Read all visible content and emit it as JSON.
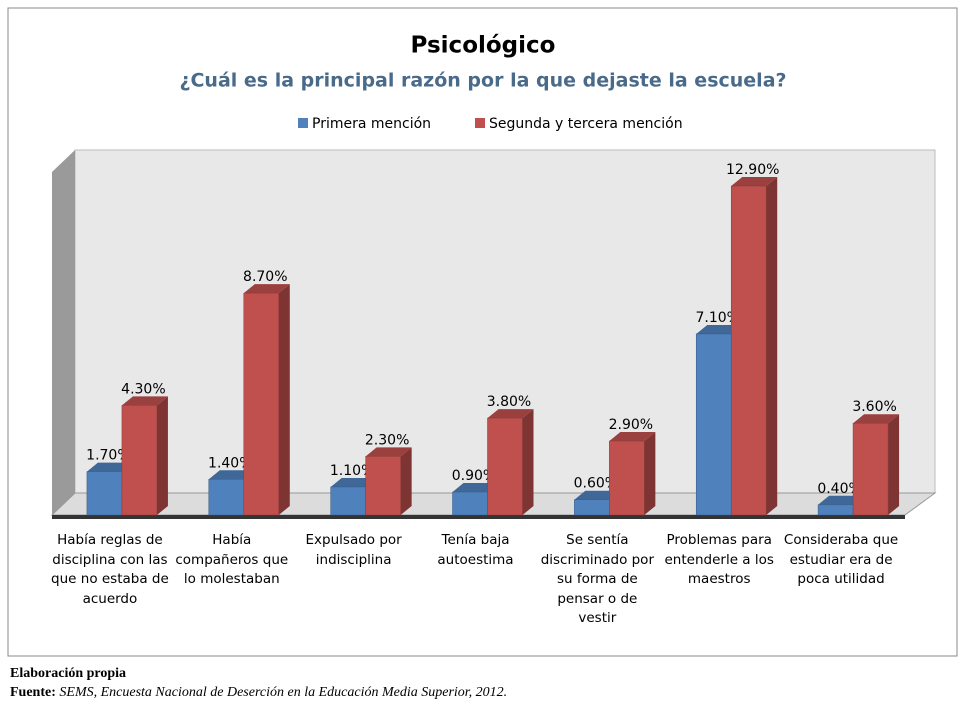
{
  "chart_data": {
    "type": "bar",
    "title": "Psicológico",
    "subtitle": "¿Cuál es la principal razón por la que dejaste la escuela?",
    "categories": [
      "Había reglas de disciplina con las que no estaba de acuerdo",
      "Había compañeros que lo molestaban",
      "Expulsado por indisciplina",
      "Tenía baja autoestima",
      "Se sentía discriminado por su forma de pensar o de vestir",
      "Problemas para entenderle a los maestros",
      "Consideraba que estudiar era de poca utilidad"
    ],
    "series": [
      {
        "name": "Primera mención",
        "color": "#4f81bd",
        "values": [
          1.7,
          1.4,
          1.1,
          0.9,
          0.6,
          7.1,
          0.4
        ],
        "value_labels": [
          "1.70%",
          "1.40%",
          "1.10%",
          "0.90%",
          "0.60%",
          "7.10%",
          "0.40%"
        ]
      },
      {
        "name": "Segunda y tercera mención",
        "color": "#c0504d",
        "values": [
          4.3,
          8.7,
          2.3,
          3.8,
          2.9,
          12.9,
          3.6
        ],
        "value_labels": [
          "4.30%",
          "8.70%",
          "2.30%",
          "3.80%",
          "2.90%",
          "12.90%",
          "3.60%"
        ]
      }
    ],
    "ylim": [
      0,
      14
    ],
    "legend": "top"
  },
  "notes": {
    "credit": "Elaboración propia",
    "source_label": "Fuente:",
    "source_text": "SEMS, Encuesta Nacional de Deserción en la Educación Media Superior, 2012."
  }
}
